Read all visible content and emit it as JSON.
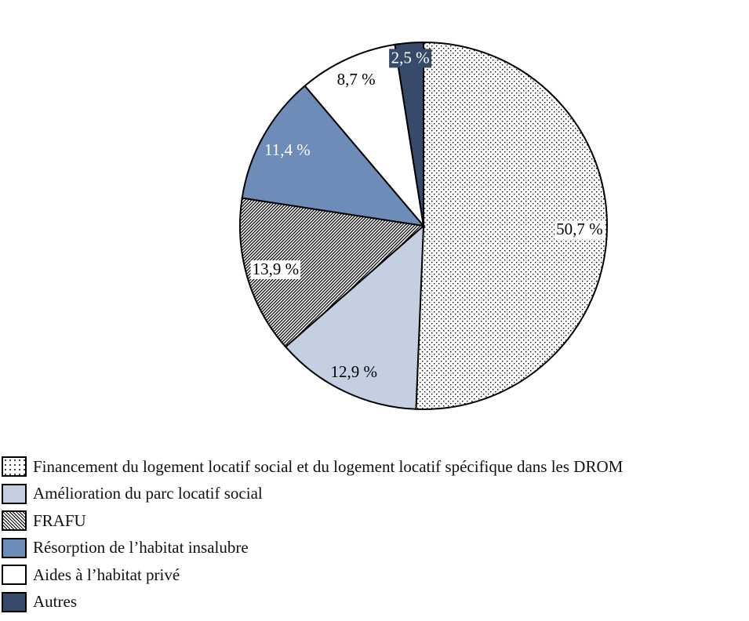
{
  "chart_data": {
    "type": "pie",
    "start": "top",
    "direction": "clockwise",
    "legend_position": "bottom-left",
    "slices": [
      {
        "name": "Financement du logement locatif social et du logement locatif spécifique dans les DROM",
        "value": 50.7,
        "label": "50,7 %",
        "fill": "#ffffff",
        "pattern": "dots",
        "label_color": "#000000",
        "label_bg": "#ffffff"
      },
      {
        "name": "Amélioration du parc locatif social",
        "value": 12.9,
        "label": "12,9 %",
        "fill": "#c4cfe1",
        "pattern": "none",
        "label_color": "#000000",
        "label_bg": ""
      },
      {
        "name": "FRAFU",
        "value": 13.9,
        "label": "13,9 %",
        "fill": "#ffffff",
        "pattern": "diagonal-hatch",
        "label_color": "#000000",
        "label_bg": "#ffffff"
      },
      {
        "name": "Résorption de l’habitat insalubre",
        "value": 11.4,
        "label": "11,4 %",
        "fill": "#6d8db8",
        "pattern": "none",
        "label_color": "#ffffff",
        "label_bg": ""
      },
      {
        "name": "Aides à l’habitat privé",
        "value": 8.7,
        "label": "8,7 %",
        "fill": "#ffffff",
        "pattern": "none",
        "label_color": "#000000",
        "label_bg": ""
      },
      {
        "name": "Autres",
        "value": 2.5,
        "label": "2,5 %",
        "fill": "#374a6a",
        "pattern": "none",
        "label_color": "#ffffff",
        "label_bg": "#374a6a"
      }
    ]
  }
}
